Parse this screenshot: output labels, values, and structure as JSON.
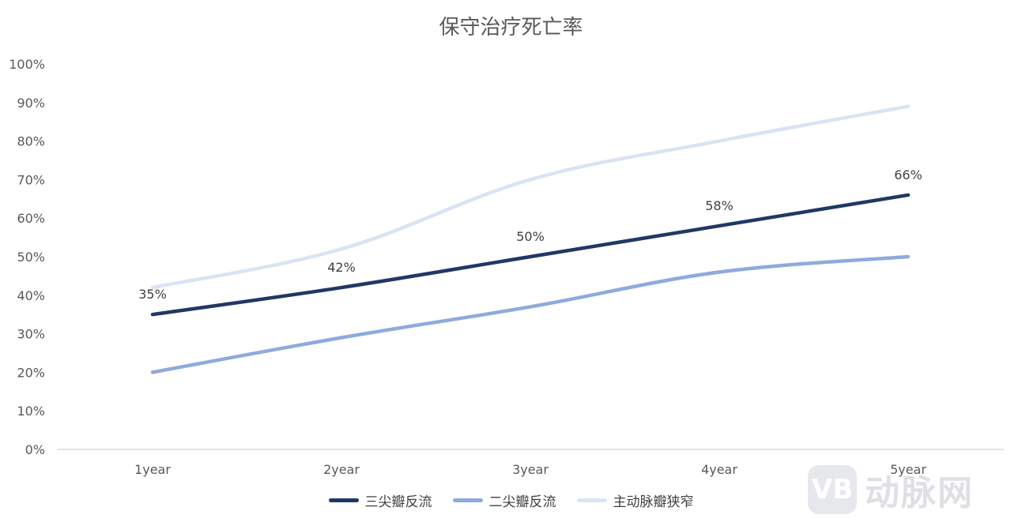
{
  "chart_data": {
    "type": "line",
    "title": "保守治疗死亡率",
    "categories": [
      "1year",
      "2year",
      "3year",
      "4year",
      "5year"
    ],
    "ylim": [
      0,
      100
    ],
    "yticks": [
      "0%",
      "10%",
      "20%",
      "30%",
      "40%",
      "50%",
      "60%",
      "70%",
      "80%",
      "90%",
      "100%"
    ],
    "grid": false,
    "legend_position": "bottom",
    "series": [
      {
        "name": "三尖瓣反流",
        "color": "#203864",
        "values": [
          35,
          42,
          50,
          58,
          66
        ],
        "data_labels": [
          "35%",
          "42%",
          "50%",
          "58%",
          "66%"
        ]
      },
      {
        "name": "二尖瓣反流",
        "color": "#8faadc",
        "values": [
          20,
          29,
          37,
          46,
          50
        ]
      },
      {
        "name": "主动脉瓣狭窄",
        "color": "#dae3f3",
        "values": [
          42,
          52,
          70,
          80,
          89
        ]
      }
    ]
  },
  "watermark": {
    "badge": "VB",
    "text": "动脉网"
  }
}
